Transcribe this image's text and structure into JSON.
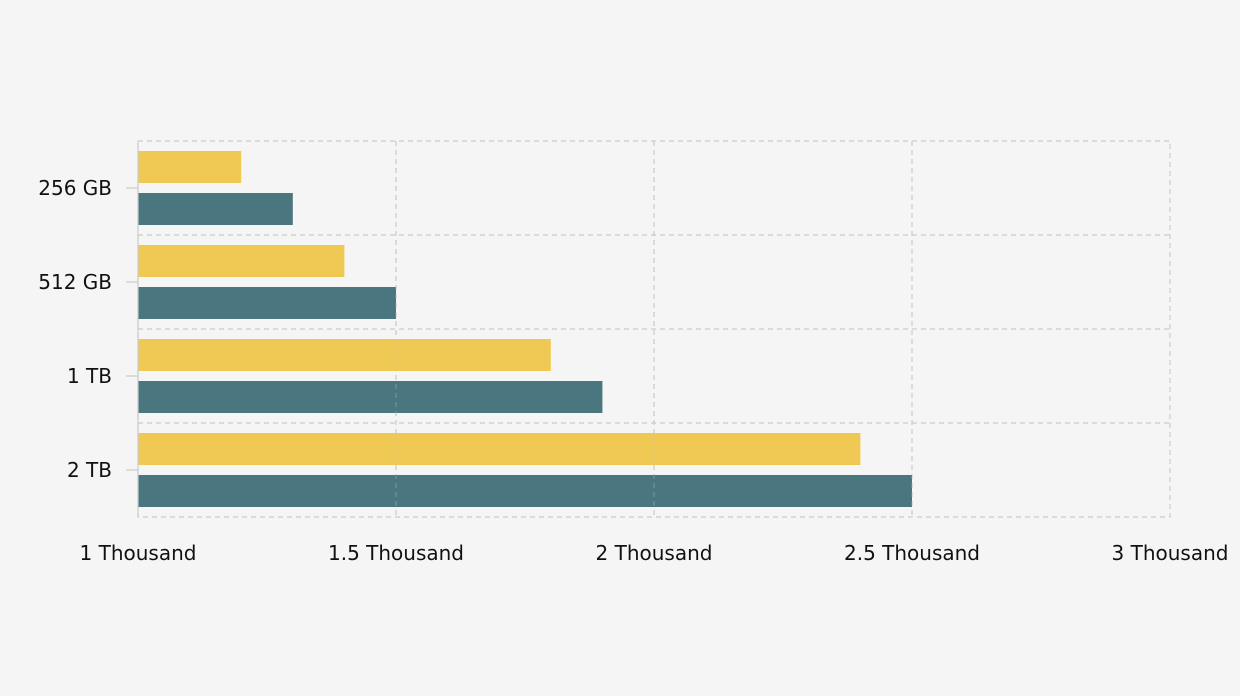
{
  "chart_data": {
    "type": "bar",
    "orientation": "horizontal",
    "categories": [
      "256 GB",
      "512 GB",
      "1 TB",
      "2 TB"
    ],
    "series": [
      {
        "color": "#f0c750",
        "values": [
          1200,
          1400,
          1800,
          2400
        ]
      },
      {
        "color": "#44727c",
        "values": [
          1300,
          1500,
          1900,
          2500
        ]
      }
    ],
    "xlim": [
      1000,
      3000
    ],
    "x_ticks": [
      1000,
      1500,
      2000,
      2500,
      3000
    ],
    "x_tick_labels": [
      "1 Thousand",
      "1.5 Thousand",
      "2 Thousand",
      "2.5 Thousand",
      "3 Thousand"
    ],
    "title": "",
    "xlabel": "",
    "ylabel": "",
    "grid": true,
    "legend": "none",
    "background": "#f5f5f5"
  }
}
